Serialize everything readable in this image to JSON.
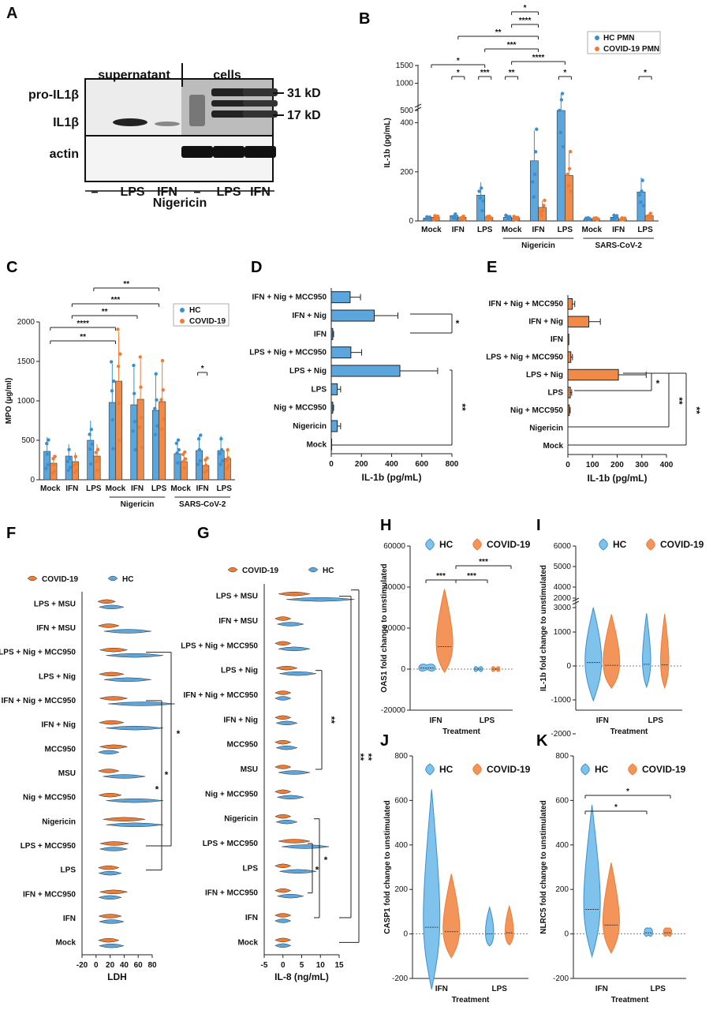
{
  "colors": {
    "hc": "#3a8fd1",
    "covid": "#ef7c32",
    "hc_bar": "#5ba7dd",
    "covid_bar": "#f08a46",
    "hc_violin": "#7fc3ec",
    "covid_violin": "#f3955a"
  },
  "panels": {
    "A": {
      "label": "A",
      "header_left": "supernatant",
      "header_right": "cells",
      "rows": [
        "pro-IL1β",
        "IL1β",
        "actin"
      ],
      "kd": [
        "31 kD",
        "17 kD"
      ],
      "lanes": [
        "–",
        "LPS",
        "IFN",
        "–",
        "LPS",
        "IFN"
      ],
      "footer": "Nigericin"
    },
    "B": {
      "label": "B",
      "legend": [
        "HC PMN",
        "COVID-19 PMN"
      ],
      "group2": "Nigericin",
      "group3": "SARS-CoV-2"
    },
    "C": {
      "label": "C",
      "legend": [
        "HC",
        "COVID-19"
      ],
      "group2": "Nigericin",
      "group3": "SARS-CoV-2"
    },
    "D": {
      "label": "D"
    },
    "E": {
      "label": "E"
    },
    "F": {
      "label": "F",
      "legend": [
        "COVID-19",
        "HC"
      ]
    },
    "G": {
      "label": "G",
      "legend": [
        "COVID-19",
        "HC"
      ]
    },
    "H": {
      "label": "H",
      "legend": [
        "HC",
        "COVID-19"
      ]
    },
    "I": {
      "label": "I",
      "legend": [
        "HC",
        "COVID-19"
      ]
    },
    "J": {
      "label": "J",
      "legend": [
        "HC",
        "COVID-19"
      ]
    },
    "K": {
      "label": "K",
      "legend": [
        "HC",
        "COVID-19"
      ]
    }
  },
  "chart_data": [
    {
      "panel": "B",
      "type": "bar",
      "ylabel": "IL-1b (pg/mL)",
      "ylim": [
        0,
        1500
      ],
      "broken_axis": true,
      "yticks": [
        0,
        200,
        400,
        500,
        1000,
        1500
      ],
      "categories": [
        "Mock",
        "IFN",
        "LPS",
        "Mock",
        "IFN",
        "LPS",
        "Mock",
        "IFN",
        "LPS"
      ],
      "series": [
        {
          "name": "HC PMN",
          "values": [
            12,
            22,
            105,
            15,
            245,
            465,
            8,
            15,
            118
          ]
        },
        {
          "name": "COVID-19 PMN",
          "values": [
            15,
            15,
            15,
            12,
            55,
            185,
            8,
            8,
            22
          ]
        }
      ],
      "significance": [
        "*",
        "***",
        "**",
        "*",
        "*",
        "*",
        "*",
        "****",
        "**",
        "***",
        "****",
        "*"
      ]
    },
    {
      "panel": "C",
      "type": "bar",
      "ylabel": "MPO (µg/ml)",
      "ylim": [
        0,
        2000
      ],
      "yticks": [
        0,
        500,
        1000,
        1500,
        2000
      ],
      "categories": [
        "Mock",
        "IFN",
        "LPS",
        "Mock",
        "IFN",
        "LPS",
        "Mock",
        "IFN",
        "LPS"
      ],
      "series": [
        {
          "name": "HC",
          "values": [
            360,
            300,
            500,
            980,
            950,
            880,
            330,
            370,
            370
          ]
        },
        {
          "name": "COVID-19",
          "values": [
            210,
            230,
            300,
            1250,
            1020,
            990,
            230,
            180,
            270
          ]
        }
      ],
      "significance": [
        "**",
        "****",
        "**",
        "***",
        "**",
        "*"
      ]
    },
    {
      "panel": "D",
      "type": "bar",
      "orientation": "horizontal",
      "xlabel": "IL-1b (pg/mL)",
      "xlim": [
        0,
        800
      ],
      "xticks": [
        0,
        200,
        400,
        600,
        800
      ],
      "categories": [
        "IFN + Nig + MCC950",
        "IFN + Nig",
        "IFN",
        "LPS + Nig + MCC950",
        "LPS + Nig",
        "LPS",
        "Nig + MCC950",
        "Nigericin",
        "Mock"
      ],
      "values": [
        125,
        285,
        10,
        130,
        455,
        40,
        10,
        40,
        3
      ],
      "significance": [
        "*",
        "**"
      ]
    },
    {
      "panel": "E",
      "type": "bar",
      "orientation": "horizontal",
      "xlabel": "IL-1b (pg/mL)",
      "xlim": [
        0,
        400
      ],
      "xticks": [
        0,
        100,
        200,
        300,
        400
      ],
      "categories": [
        "IFN + Nig + MCC950",
        "IFN + Nig",
        "IFN",
        "LPS + Nig + MCC950",
        "LPS + Nig",
        "LPS",
        "Nig + MCC950",
        "Nigericin",
        "Mock"
      ],
      "values": [
        18,
        85,
        4,
        12,
        205,
        10,
        6,
        0,
        0
      ],
      "significance": [
        "*",
        "**",
        "**"
      ]
    },
    {
      "panel": "F",
      "type": "violin",
      "xlabel": "LDH",
      "xlim": [
        -20,
        80
      ],
      "xticks": [
        -20,
        0,
        20,
        40,
        60,
        80
      ],
      "categories": [
        "LPS + MSU",
        "IFN + MSU",
        "LPS + Nig + MCC950",
        "LPS + Nig",
        "IFN + Nig + MCC950",
        "IFN + Nig",
        "MCC950",
        "MSU",
        "Nig + MCC950",
        "Nigericin",
        "LPS + MCC950",
        "LPS",
        "IFN + MCC950",
        "IFN",
        "Mock"
      ],
      "series": [
        {
          "name": "COVID-19",
          "medians": [
            15,
            18,
            25,
            22,
            25,
            22,
            25,
            18,
            20,
            40,
            26,
            18,
            25,
            20,
            18
          ]
        },
        {
          "name": "HC",
          "medians": [
            22,
            45,
            55,
            45,
            65,
            55,
            18,
            40,
            55,
            55,
            25,
            20,
            20,
            22,
            22
          ]
        }
      ],
      "significance": [
        "*",
        "*",
        "*"
      ]
    },
    {
      "panel": "G",
      "type": "violin",
      "xlabel": "IL-8 (ng/mL)",
      "xlim": [
        -5,
        15
      ],
      "xticks": [
        -5,
        0,
        5,
        10,
        15
      ],
      "categories": [
        "LPS + MSU",
        "IFN + MSU",
        "LPS + Nig + MCC950",
        "LPS + Nig",
        "IFN + Nig + MCC950",
        "IFN + Nig",
        "MCC950",
        "MSU",
        "Nig + MCC950",
        "Nigericin",
        "LPS + MCC950",
        "LPS",
        "IFN + MCC950",
        "IFN",
        "Mock"
      ],
      "series": [
        {
          "name": "COVID-19",
          "medians": [
            3,
            0,
            0,
            1,
            0,
            0,
            0,
            0,
            0,
            0,
            3,
            0,
            0,
            0,
            0
          ]
        },
        {
          "name": "HC",
          "medians": [
            10,
            2,
            3,
            4,
            0,
            1,
            1,
            3,
            2,
            1,
            6,
            4,
            2,
            0,
            0
          ]
        }
      ],
      "significance": [
        "**",
        "**",
        "**",
        "*",
        "*"
      ]
    },
    {
      "panel": "H",
      "type": "violin",
      "xlabel": "Treatment",
      "ylabel": "OAS1 fold change to unstimulated",
      "ylim": [
        -20000,
        60000
      ],
      "yticks": [
        -20000,
        0,
        20000,
        40000,
        60000
      ],
      "categories": [
        "IFN",
        "LPS"
      ],
      "series": [
        {
          "name": "HC",
          "medians": [
            500,
            0
          ]
        },
        {
          "name": "COVID-19",
          "medians": [
            11000,
            0
          ]
        }
      ],
      "significance": [
        "***",
        "***",
        "***"
      ]
    },
    {
      "panel": "I",
      "type": "violin",
      "xlabel": "Treatment",
      "ylabel": "IL-1b fold change to unstimulated",
      "ylim": [
        -2000,
        6000
      ],
      "broken_axis": true,
      "yticks": [
        -2000,
        -1000,
        0,
        1000,
        2000,
        3000,
        4000,
        5000,
        6000
      ],
      "categories": [
        "IFN",
        "LPS"
      ],
      "series": [
        {
          "name": "HC",
          "medians": [
            100,
            50
          ]
        },
        {
          "name": "COVID-19",
          "medians": [
            20,
            30
          ]
        }
      ]
    },
    {
      "panel": "J",
      "type": "violin",
      "xlabel": "Treatment",
      "ylabel": "CASP1 fold change to unstimulated",
      "ylim": [
        -200,
        800
      ],
      "yticks": [
        -200,
        0,
        200,
        400,
        600,
        800
      ],
      "categories": [
        "IFN",
        "LPS"
      ],
      "series": [
        {
          "name": "HC",
          "medians": [
            30,
            0
          ]
        },
        {
          "name": "COVID-19",
          "medians": [
            10,
            5
          ]
        }
      ]
    },
    {
      "panel": "K",
      "type": "violin",
      "xlabel": "Treatment",
      "ylabel": "NLRC5 fold change to unstimulated",
      "ylim": [
        -200,
        800
      ],
      "yticks": [
        -200,
        0,
        200,
        400,
        600,
        800
      ],
      "categories": [
        "IFN",
        "LPS"
      ],
      "series": [
        {
          "name": "HC",
          "medians": [
            110,
            5
          ]
        },
        {
          "name": "COVID-19",
          "medians": [
            40,
            5
          ]
        }
      ],
      "significance": [
        "*",
        "*"
      ]
    }
  ]
}
